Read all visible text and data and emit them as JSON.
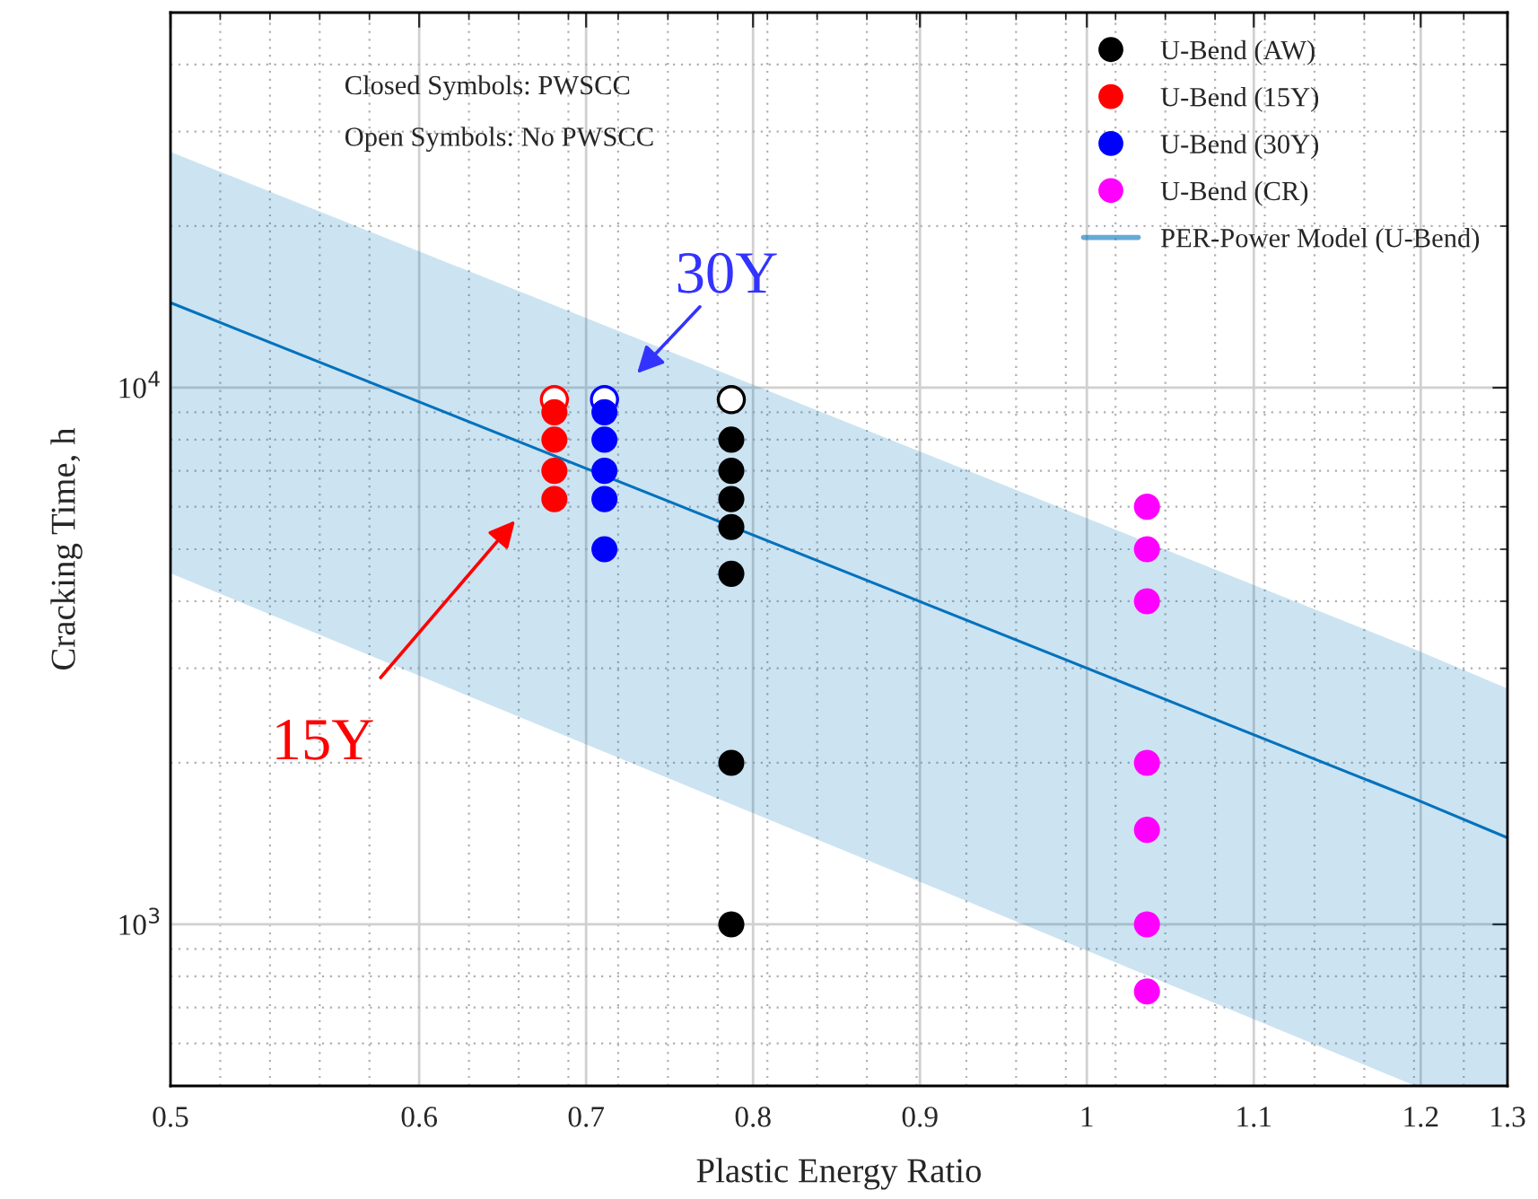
{
  "chart_data": {
    "type": "scatter",
    "xlabel": "Plastic Energy Ratio",
    "ylabel": "Cracking Time, h",
    "xlim": [
      0.451,
      1.252
    ],
    "xticks": [
      {
        "value": 0.451,
        "label": "0.5"
      },
      0.6,
      0.7,
      0.8,
      0.9,
      {
        "value": 1.0,
        "label": "1"
      },
      1.1,
      1.2,
      {
        "value": 1.252,
        "label": "1.3"
      }
    ],
    "log": "y",
    "ylim": [
      500,
      50000
    ],
    "yticks": [
      {
        "value": 1000,
        "label": "10$^{3}$"
      },
      {
        "value": 10000,
        "label": "10$^{4}$"
      }
    ],
    "grid": true,
    "legend": "top right",
    "marker": "circle",
    "series": [
      {
        "name": "U-Bend (AW)",
        "color": "#000000",
        "x": [
          0.787,
          0.787,
          0.787,
          0.787,
          0.787,
          0.787,
          0.787
        ],
        "values": [
          8000,
          7000,
          6200,
          5500,
          4500,
          2000,
          1000
        ]
      },
      {
        "name": "U-Bend (15Y)",
        "color": "#ff0000",
        "x": [
          0.681,
          0.681,
          0.681,
          0.681
        ],
        "values": [
          9000,
          8000,
          7000,
          6200
        ]
      },
      {
        "name": "U-Bend (30Y)",
        "color": "#0000ff",
        "x": [
          0.711,
          0.711,
          0.711,
          0.711,
          0.711
        ],
        "values": [
          9000,
          8000,
          7000,
          6200,
          5000
        ]
      },
      {
        "name": "U-Bend (CR)",
        "color": "#ff00ff",
        "x": [
          1.036,
          1.036,
          1.036,
          1.036,
          1.036,
          1.036,
          1.036
        ],
        "values": [
          6000,
          5000,
          4000,
          2000,
          1500,
          1000,
          750
        ]
      },
      {
        "name": "PER-Power Model (U-Bend)",
        "type": "line",
        "marker": "none",
        "color": "#0072bd",
        "x": [
          0.451,
          1.197,
          1.252
        ],
        "values": [
          14400,
          1710,
          1450
        ],
        "lower": [
          4510,
          500,
          500
        ],
        "upper": [
          27500,
          3250,
          2750
        ]
      },
      {
        "color": "#000000",
        "x": [
          0.787
        ],
        "values": [
          9500
        ]
      },
      {
        "color": "#ff0000",
        "x": [
          0.681
        ],
        "values": [
          9500
        ]
      },
      {
        "color": "#0000ff",
        "x": [
          0.711
        ],
        "values": [
          9500
        ]
      }
    ],
    "annotations": [
      "Closed Symbols: PWSCC",
      "Open Symbols: No PWSCC",
      "30Y",
      "15Y"
    ]
  }
}
